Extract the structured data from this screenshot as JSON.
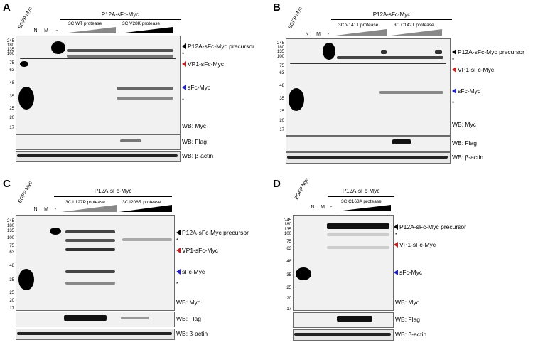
{
  "panels": [
    {
      "id": "A",
      "letter": "A",
      "egfp": "EGFP Myc",
      "n": "N",
      "m": "M",
      "minus": "-",
      "construct": "P12A-sFc-Myc",
      "protease1": "3C WT protease",
      "protease2": "3C V28K protease",
      "markers": [
        "245",
        "180",
        "135",
        "100",
        "75",
        "63",
        "48",
        "35",
        "25",
        "20",
        "17"
      ],
      "bands": {
        "precursor": "P12A-sFc-Myc precursor",
        "vp1": "VP1-sFc-Myc",
        "sfc": "sFc-Myc"
      },
      "stars": [
        "*",
        "*"
      ],
      "wb": [
        "WB: Myc",
        "WB: Flag",
        "WB: β-actin"
      ]
    },
    {
      "id": "B",
      "letter": "B",
      "egfp": "EGFP Myc",
      "n": "N",
      "m": "M",
      "minus": "-",
      "construct": "P12A-sFc-Myc",
      "protease1": "3C V141T protease",
      "protease2": "3C C142T protease",
      "markers": [
        "245",
        "180",
        "135",
        "100",
        "75",
        "63",
        "48",
        "35",
        "25",
        "20",
        "17"
      ],
      "bands": {
        "precursor": "P12A-sFc-Myc precursor",
        "vp1": "VP1-sFc-Myc",
        "sfc": "sFc-Myc"
      },
      "stars": [
        "*",
        "*"
      ],
      "wb": [
        "WB: Myc",
        "WB: Flag",
        "WB: β-actin"
      ]
    },
    {
      "id": "C",
      "letter": "C",
      "egfp": "EGFP Myc",
      "n": "N",
      "m": "M",
      "minus": "-",
      "construct": "P12A-sFc-Myc",
      "protease1": "3C L127P protease",
      "protease2": "3C I206R protease",
      "markers": [
        "245",
        "180",
        "135",
        "100",
        "75",
        "63",
        "48",
        "35",
        "25",
        "20",
        "17"
      ],
      "bands": {
        "precursor": "P12A-sFc-Myc precursor",
        "vp1": "VP1-sFc-Myc",
        "sfc": "sFc-Myc"
      },
      "stars": [
        "*",
        "*"
      ],
      "wb": [
        "WB: Myc",
        "WB: Flag",
        "WB: β-actin"
      ]
    },
    {
      "id": "D",
      "letter": "D",
      "egfp": "EGFP Myc",
      "n": "N",
      "m": "M",
      "minus": "-",
      "construct": "P12A-sFc-Myc",
      "protease1": "3C C163A protease",
      "protease2": "",
      "markers": [
        "245",
        "180",
        "135",
        "100",
        "75",
        "63",
        "48",
        "35",
        "25",
        "20",
        "17"
      ],
      "bands": {
        "precursor": "P12A-sFc-Myc precursor",
        "vp1": "VP1-sFc-Myc",
        "sfc": "sFc-Myc"
      },
      "stars": [
        "*"
      ],
      "wb": [
        "WB: Myc",
        "WB: Flag",
        "WB: β-actin"
      ]
    }
  ],
  "colors": {
    "arrow_precursor": "#000000",
    "arrow_vp1": "#b22222",
    "arrow_sfc": "#2222bb"
  }
}
